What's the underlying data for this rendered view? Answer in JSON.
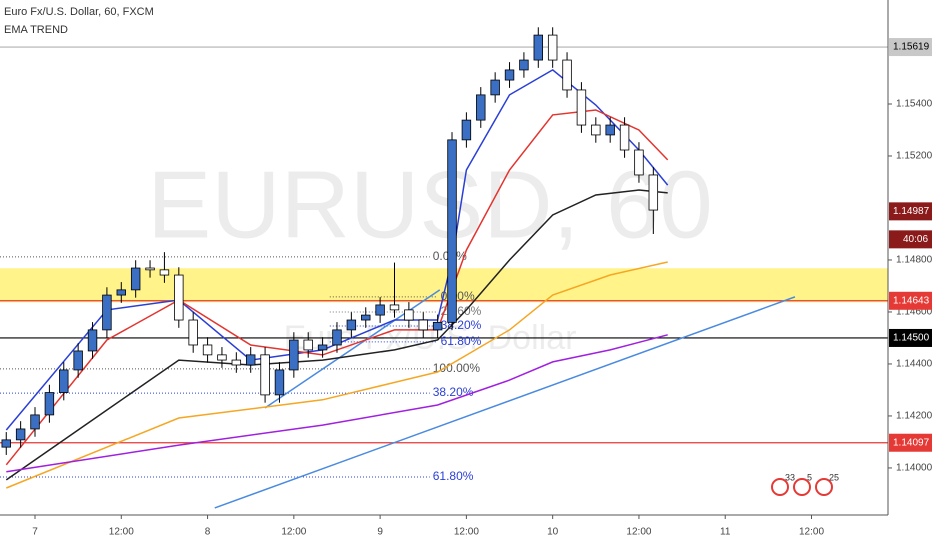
{
  "chart_data": {
    "type": "candlestick",
    "title": "Euro Fx/U.S. Dollar, 60, FXCM",
    "subtitle": "EMA TREND",
    "watermark": "EURUSD, 60",
    "watermark_sub": "Euro Fx/U.S. Dollar",
    "xlim": [
      -4.87,
      118.64
    ],
    "ylim": [
      1.13819,
      1.158
    ],
    "xticks": [
      {
        "value": 0,
        "label": "7"
      },
      {
        "value": 12,
        "label": "12:00"
      },
      {
        "value": 24,
        "label": "8"
      },
      {
        "value": 36,
        "label": "12:00"
      },
      {
        "value": 48,
        "label": "9"
      },
      {
        "value": 60,
        "label": "12:00"
      },
      {
        "value": 72,
        "label": "10"
      },
      {
        "value": 84,
        "label": "12:00"
      },
      {
        "value": 96,
        "label": "11"
      },
      {
        "value": 108,
        "label": "12:00"
      }
    ],
    "yticks": [
      {
        "value": 1.14,
        "label": "1.14000"
      },
      {
        "value": 1.142,
        "label": "1.14200"
      },
      {
        "value": 1.144,
        "label": "1.14400"
      },
      {
        "value": 1.146,
        "label": "1.14600"
      },
      {
        "value": 1.148,
        "label": "1.14800"
      },
      {
        "value": 1.152,
        "label": "1.15200"
      },
      {
        "value": 1.154,
        "label": "1.15400"
      }
    ],
    "up_color": "#3a6fc4",
    "down_color": "#ffffff",
    "x": [
      -4,
      -2,
      0,
      2,
      4,
      6,
      8,
      10,
      12,
      14,
      16,
      18,
      20,
      22,
      24,
      26,
      28,
      30,
      32,
      34,
      36,
      38,
      40,
      42,
      44,
      46,
      48,
      50,
      52,
      54,
      56,
      58,
      60,
      62,
      64,
      66,
      68,
      70,
      72,
      74,
      76,
      78,
      80,
      82,
      84,
      86
    ],
    "open": [
      1.1408,
      1.14108,
      1.1415,
      1.14204,
      1.1429,
      1.14377,
      1.1445,
      1.14531,
      1.14665,
      1.14685,
      1.14769,
      1.14762,
      1.14742,
      1.14569,
      1.14473,
      1.14435,
      1.14415,
      1.14396,
      1.14435,
      1.14281,
      1.14377,
      1.14492,
      1.14454,
      1.14473,
      1.14531,
      1.14569,
      1.14588,
      1.14627,
      1.14608,
      1.14569,
      1.14531,
      1.1456,
      1.15262,
      1.15338,
      1.15435,
      1.15492,
      1.15531,
      1.15569,
      1.15665,
      1.15569,
      1.15454,
      1.15319,
      1.15281,
      1.15319,
      1.15223,
      1.15127
    ],
    "high": [
      1.14138,
      1.1418,
      1.14234,
      1.1432,
      1.14407,
      1.1448,
      1.14561,
      1.14695,
      1.14715,
      1.14799,
      1.14799,
      1.1483,
      1.14772,
      1.14599,
      1.14503,
      1.14465,
      1.14445,
      1.14465,
      1.14465,
      1.14407,
      1.14522,
      1.14522,
      1.14503,
      1.14561,
      1.14599,
      1.14618,
      1.14657,
      1.1479,
      1.14638,
      1.14599,
      1.1459,
      1.15292,
      1.15368,
      1.15465,
      1.15522,
      1.15561,
      1.15599,
      1.15695,
      1.15695,
      1.15599,
      1.15484,
      1.15349,
      1.15349,
      1.15349,
      1.15253,
      1.15157
    ],
    "low": [
      1.1405,
      1.14078,
      1.1412,
      1.14174,
      1.1426,
      1.14347,
      1.1442,
      1.14501,
      1.14635,
      1.14655,
      1.14732,
      1.14712,
      1.14539,
      1.14443,
      1.14405,
      1.14385,
      1.14366,
      1.14366,
      1.14251,
      1.14251,
      1.14347,
      1.14424,
      1.14424,
      1.14443,
      1.14501,
      1.14539,
      1.14558,
      1.14578,
      1.14539,
      1.14501,
      1.14501,
      1.1453,
      1.15232,
      1.15308,
      1.15405,
      1.15462,
      1.15501,
      1.15539,
      1.15539,
      1.15424,
      1.15289,
      1.15251,
      1.15251,
      1.15193,
      1.15097,
      1.149
    ],
    "close": [
      1.14108,
      1.1415,
      1.14204,
      1.1429,
      1.14377,
      1.1445,
      1.14531,
      1.14665,
      1.14685,
      1.14769,
      1.14762,
      1.14742,
      1.14569,
      1.14473,
      1.14435,
      1.14415,
      1.14396,
      1.14435,
      1.14281,
      1.14377,
      1.14492,
      1.14454,
      1.14473,
      1.14531,
      1.14569,
      1.14588,
      1.14627,
      1.14608,
      1.14569,
      1.14531,
      1.1456,
      1.15262,
      1.15338,
      1.15435,
      1.15492,
      1.15531,
      1.15569,
      1.15665,
      1.15569,
      1.15454,
      1.15319,
      1.15281,
      1.15319,
      1.15223,
      1.15127,
      1.14992
    ],
    "lines": [
      {
        "color": "#2a3fd6",
        "x": [
          -4,
          10,
          20,
          30,
          40,
          50,
          56,
          58,
          60,
          66,
          72,
          78,
          84,
          88
        ],
        "values": [
          1.14146,
          1.14608,
          1.14646,
          1.14415,
          1.14454,
          1.14569,
          1.14569,
          1.148,
          1.15146,
          1.15435,
          1.15531,
          1.15396,
          1.15223,
          1.15088
        ]
      },
      {
        "color": "#e3342f",
        "x": [
          -4,
          10,
          20,
          30,
          40,
          50,
          56,
          60,
          66,
          72,
          78,
          84,
          88
        ],
        "values": [
          1.14012,
          1.14492,
          1.14646,
          1.14473,
          1.14435,
          1.14531,
          1.14531,
          1.14838,
          1.15146,
          1.15358,
          1.15377,
          1.153,
          1.15185
        ]
      },
      {
        "color": "#222222",
        "x": [
          -4,
          10,
          20,
          30,
          40,
          50,
          56,
          60,
          66,
          72,
          78,
          84,
          88
        ],
        "values": [
          1.13954,
          1.14223,
          1.14415,
          1.14396,
          1.14415,
          1.14454,
          1.14492,
          1.14608,
          1.148,
          1.14973,
          1.1505,
          1.15069,
          1.15058
        ]
      },
      {
        "color": "#f5a623",
        "x": [
          -4,
          20,
          40,
          56,
          66,
          72,
          80,
          88
        ],
        "values": [
          1.13923,
          1.14192,
          1.14262,
          1.14369,
          1.14531,
          1.14665,
          1.14742,
          1.14792
        ]
      },
      {
        "color": "#a020e0",
        "x": [
          -4,
          20,
          40,
          56,
          66,
          72,
          80,
          88
        ],
        "values": [
          1.13985,
          1.14088,
          1.14165,
          1.14242,
          1.14338,
          1.14408,
          1.14454,
          1.14512
        ]
      }
    ],
    "trendlines": [
      {
        "color": "#4a8ae0",
        "x": [
          25,
          105.7
        ],
        "values": [
          1.13846,
          1.14658
        ]
      },
      {
        "color": "#4a8ae0",
        "x": [
          32,
          56.3
        ],
        "values": [
          1.14231,
          1.14685
        ]
      }
    ],
    "zone": {
      "color": "#fff176",
      "values": [
        1.14637,
        1.14768
      ]
    },
    "hlines": [
      {
        "value": 1.15619,
        "color": "#b0b0b0"
      },
      {
        "value": 1.14643,
        "color": "#e53935"
      },
      {
        "value": 1.145,
        "color": "#000000"
      },
      {
        "value": 1.14097,
        "color": "#e53935"
      }
    ],
    "fibs": [
      {
        "value": 1.14812,
        "label": "0.00%",
        "color": "#555555",
        "x": [
          -4.87,
          54.9
        ]
      },
      {
        "value": 1.14381,
        "label": "100.00%",
        "color": "#555555",
        "x": [
          -4.87,
          54.9
        ]
      },
      {
        "value": 1.14288,
        "label": "38.20%",
        "color": "#2a3fd6",
        "x": [
          -4.87,
          54.9
        ]
      },
      {
        "value": 1.13965,
        "label": "61.80%",
        "color": "#2a3fd6",
        "x": [
          -4.87,
          54.9
        ]
      },
      {
        "value": 1.14658,
        "label": "0.00%",
        "color": "#555555",
        "x": [
          41,
          56
        ]
      },
      {
        "value": 1.146,
        "label": "23.60%",
        "color": "#777777",
        "x": [
          41,
          56
        ]
      },
      {
        "value": 1.14546,
        "label": "38.20%",
        "color": "#2a3fd6",
        "x": [
          41,
          56
        ]
      },
      {
        "value": 1.14485,
        "label": "61.80%",
        "color": "#2a3fd6",
        "x": [
          41,
          56
        ]
      }
    ],
    "price_tags": [
      {
        "value": 1.15619,
        "label": "1.15619",
        "color": "#c8c8c8",
        "text_color": "#000000"
      },
      {
        "value": 1.14987,
        "label": "1.14987",
        "color": "#8b1a1a",
        "text_color": "#ffffff",
        "countdown": "40:06"
      },
      {
        "value": 1.14643,
        "label": "1.14643",
        "color": "#e53935",
        "text_color": "#ffffff"
      },
      {
        "value": 1.145,
        "label": "1.14500",
        "color": "#000000",
        "text_color": "#ffffff"
      },
      {
        "value": 1.14097,
        "label": "1.14097",
        "color": "#e53935",
        "text_color": "#ffffff"
      }
    ],
    "badges": [
      "33",
      "5",
      "25"
    ]
  }
}
